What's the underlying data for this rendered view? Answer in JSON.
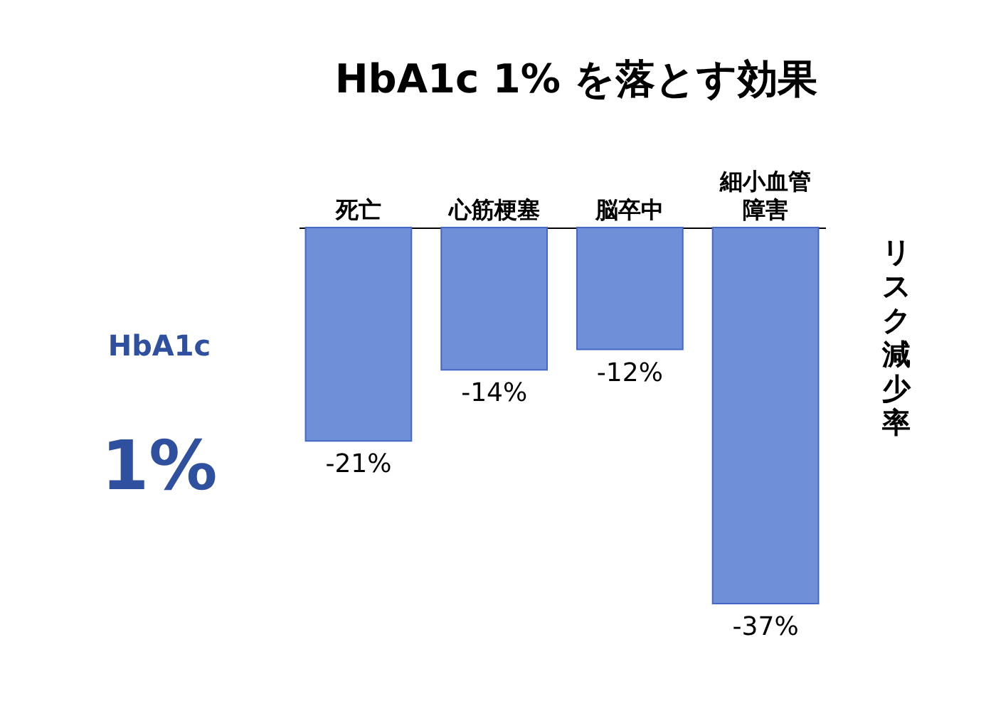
{
  "chart_data": {
    "type": "bar",
    "title": "HbA1c 1%  を落とす効果",
    "categories": [
      "死亡",
      "心筋梗塞",
      "脳卒中",
      "細小血管障害"
    ],
    "values": [
      -21,
      -14,
      -12,
      -37
    ],
    "value_labels": [
      "-21%",
      "-14%",
      "-12%",
      "-37%"
    ],
    "color": "#6f8fd8",
    "ylabel": "リスク減少率",
    "annotations": [
      "HbA1c",
      "1%"
    ]
  }
}
